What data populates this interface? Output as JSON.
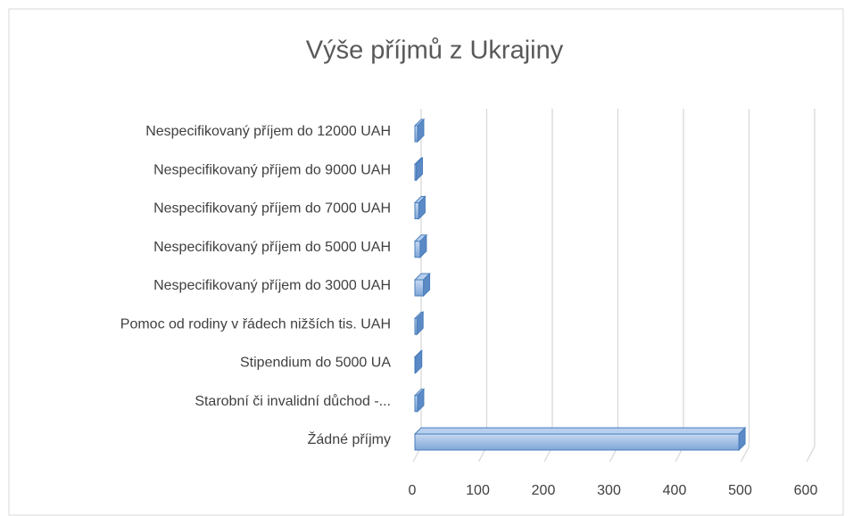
{
  "chart_data": {
    "type": "bar",
    "orientation": "horizontal",
    "title": "Výše příjmů z Ukrajiny",
    "categories": [
      "Žádné příjmy",
      "Starobní či invalidní důchod -...",
      "Stipendium do 5000 UA",
      "Pomoc od rodiny v řádech nižších tis. UAH",
      "Nespecifikovaný příjem do 3000 UAH",
      "Nespecifikovaný příjem do 5000 UAH",
      "Nespecifikovaný příjem do 7000 UAH",
      "Nespecifikovaný příjem do 9000 UAH",
      "Nespecifikovaný příjem do 12000 UAH"
    ],
    "values": [
      494,
      4,
      1,
      3,
      13,
      8,
      6,
      2,
      4
    ],
    "color": "#8db3e2",
    "xlim": [
      0,
      600
    ],
    "xticks": [
      0,
      100,
      200,
      300,
      400,
      500,
      600
    ],
    "grid": true
  }
}
